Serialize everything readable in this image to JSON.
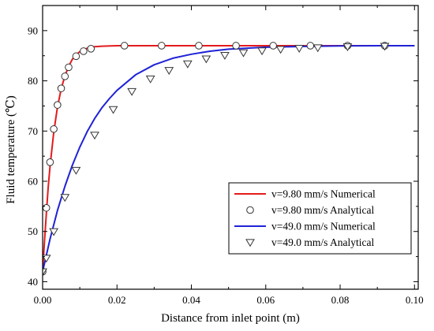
{
  "chart_data": {
    "type": "line",
    "title": "",
    "xlabel": "Distance from inlet point (m)",
    "ylabel": "Fluid temperature (℃)",
    "xlim": [
      0.0,
      0.101
    ],
    "ylim": [
      38.5,
      95
    ],
    "xticks": [
      0.0,
      0.02,
      0.04,
      0.06,
      0.08,
      0.1
    ],
    "xtick_labels": [
      "0.00",
      "0.02",
      "0.04",
      "0.06",
      "0.08",
      "0.10"
    ],
    "yticks": [
      40,
      50,
      60,
      70,
      80,
      90
    ],
    "ytick_labels": [
      "40",
      "50",
      "60",
      "70",
      "80",
      "90"
    ],
    "grid": false,
    "legend_position": "bottom-right",
    "series": [
      {
        "name": "v=9.80 mm/s Numerical",
        "kind": "line",
        "color": "#e41a1c",
        "x": [
          0.0,
          0.0005,
          0.001,
          0.0015,
          0.002,
          0.003,
          0.004,
          0.005,
          0.006,
          0.007,
          0.008,
          0.009,
          0.01,
          0.011,
          0.012,
          0.014,
          0.016,
          0.02,
          0.03,
          0.05,
          0.07,
          0.1
        ],
        "y": [
          42.0,
          48.0,
          53.5,
          58.8,
          63.0,
          69.8,
          74.8,
          78.4,
          81.0,
          82.9,
          84.3,
          85.2,
          85.8,
          86.2,
          86.5,
          86.8,
          86.9,
          87.0,
          87.0,
          87.0,
          87.0,
          87.0
        ]
      },
      {
        "name": "v=9.80 mm/s Analytical",
        "kind": "marker",
        "marker": "circle",
        "x": [
          0.0,
          0.001,
          0.002,
          0.003,
          0.004,
          0.005,
          0.006,
          0.007,
          0.009,
          0.011,
          0.013,
          0.022,
          0.032,
          0.042,
          0.052,
          0.062,
          0.072,
          0.082,
          0.092
        ],
        "y": [
          42.0,
          54.7,
          63.8,
          70.4,
          75.2,
          78.5,
          80.9,
          82.7,
          84.9,
          85.9,
          86.4,
          87.0,
          87.0,
          87.0,
          87.0,
          87.0,
          87.0,
          87.0,
          87.0
        ]
      },
      {
        "name": "v=49.0 mm/s Numerical",
        "kind": "line",
        "color": "#1f22d6",
        "x": [
          0.0,
          0.002,
          0.004,
          0.006,
          0.008,
          0.01,
          0.012,
          0.014,
          0.016,
          0.018,
          0.02,
          0.025,
          0.03,
          0.035,
          0.04,
          0.045,
          0.05,
          0.06,
          0.07,
          0.08,
          0.09,
          0.1
        ],
        "y": [
          42.0,
          48.5,
          54.2,
          59.0,
          63.2,
          66.8,
          69.9,
          72.5,
          74.7,
          76.5,
          78.1,
          81.2,
          83.2,
          84.5,
          85.3,
          85.9,
          86.3,
          86.7,
          86.85,
          86.95,
          87.0,
          87.0
        ]
      },
      {
        "name": "v=49.0 mm/s Analytical",
        "kind": "marker",
        "marker": "triangle-down",
        "x": [
          0.0,
          0.001,
          0.003,
          0.006,
          0.009,
          0.014,
          0.019,
          0.024,
          0.029,
          0.034,
          0.039,
          0.044,
          0.049,
          0.054,
          0.059,
          0.064,
          0.069,
          0.074,
          0.082,
          0.092
        ],
        "y": [
          42.0,
          44.7,
          50.0,
          56.8,
          62.2,
          69.2,
          74.3,
          77.9,
          80.4,
          82.1,
          83.4,
          84.4,
          85.1,
          85.6,
          86.0,
          86.3,
          86.5,
          86.6,
          86.8,
          86.9
        ]
      }
    ]
  }
}
